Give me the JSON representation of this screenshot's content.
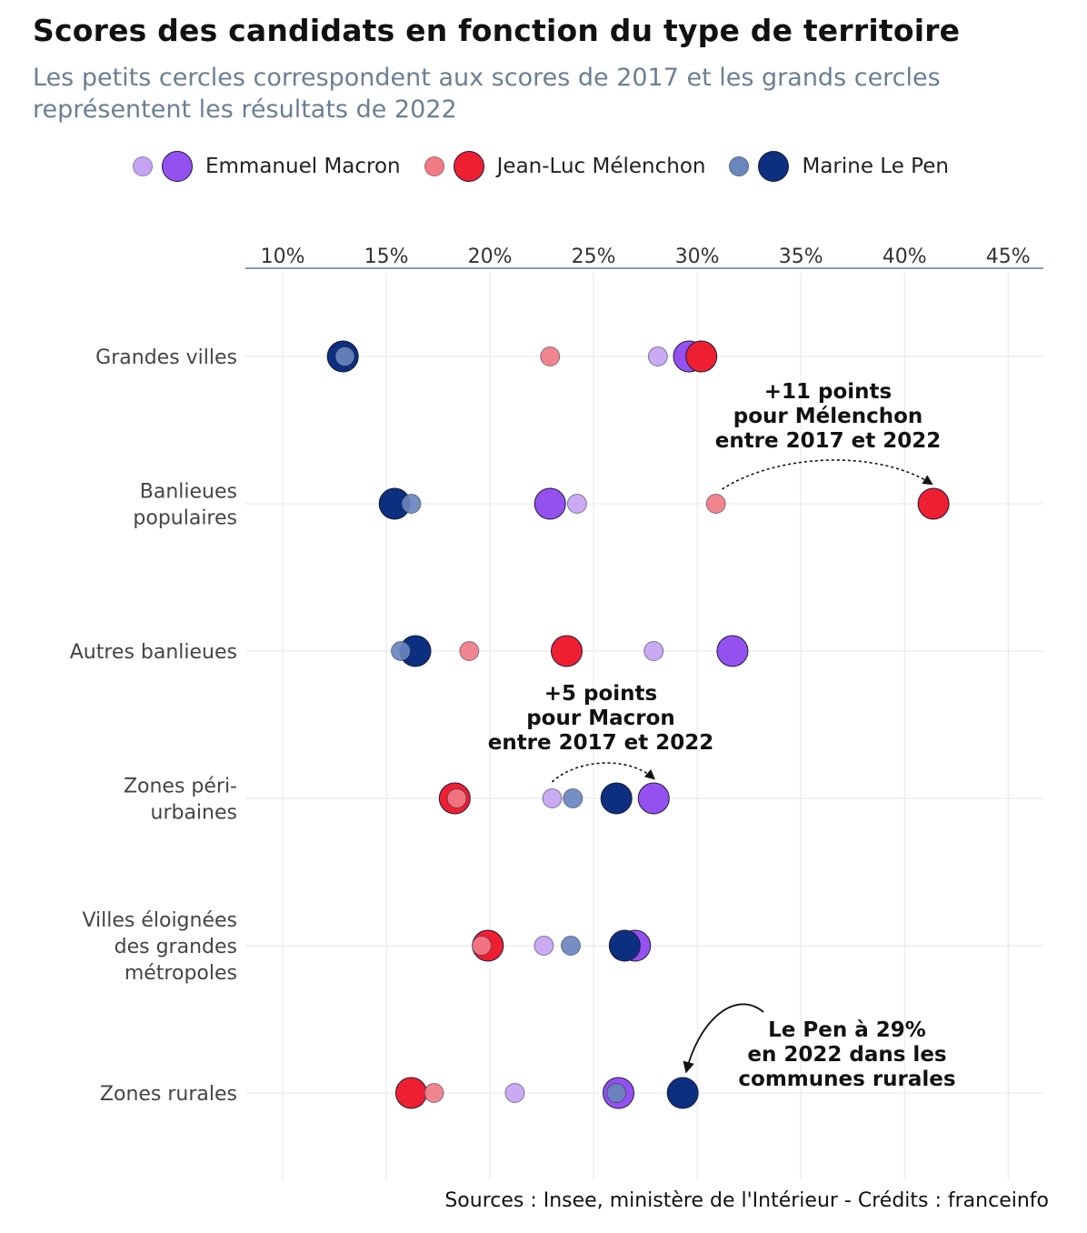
{
  "title": "Scores des candidats en fonction du type de territoire",
  "subtitle": "Les petits cercles correspondent aux scores de 2017 et les grands cercles représentent les résultats de 2022",
  "source": "Sources : Insee, ministère de l'Intérieur - Crédits : franceinfo",
  "chart_data": {
    "type": "scatter",
    "x_axis": {
      "ticks": [
        "10%",
        "15%",
        "20%",
        "25%",
        "30%",
        "35%",
        "40%",
        "45%"
      ],
      "tick_values": [
        10,
        15,
        20,
        25,
        30,
        35,
        40,
        45
      ],
      "range": [
        8.2,
        46.7
      ],
      "unit": "%",
      "position": "top"
    },
    "categories": [
      "Grandes villes",
      "Banlieues populaires",
      "Autres banlieues",
      "Zones péri-urbaines",
      "Villes éloignées des grandes métropoles",
      "Zones rurales"
    ],
    "category_labels": [
      [
        "Grandes villes"
      ],
      [
        "Banlieues",
        "populaires"
      ],
      [
        "Autres banlieues"
      ],
      [
        "Zones péri-",
        "urbaines"
      ],
      [
        "Villes éloignées",
        "des grandes",
        "métropoles"
      ],
      [
        "Zones rurales"
      ]
    ],
    "grid": true,
    "legend_position": "top",
    "series": [
      {
        "name": "Emmanuel Macron",
        "color_2017": "#c4a3f2",
        "color_2022": "#9451ef",
        "values_2017": [
          28.1,
          24.2,
          27.9,
          23.0,
          22.6,
          21.2
        ],
        "values_2022": [
          29.6,
          22.9,
          31.7,
          27.9,
          27.0,
          26.2
        ]
      },
      {
        "name": "Jean-Luc Mélenchon",
        "color_2017": "#f07b85",
        "color_2022": "#ee1f31",
        "values_2017": [
          22.9,
          30.9,
          19.0,
          18.4,
          19.6,
          17.3
        ],
        "values_2022": [
          30.2,
          41.4,
          23.7,
          18.3,
          19.9,
          16.2
        ]
      },
      {
        "name": "Marine Le Pen",
        "color_2017": "#6986bd",
        "color_2022": "#0c2f80",
        "values_2017": [
          13.0,
          16.2,
          15.7,
          24.0,
          23.9,
          26.1
        ],
        "values_2022": [
          12.9,
          15.4,
          16.4,
          26.1,
          26.5,
          29.3
        ]
      }
    ],
    "annotations": [
      {
        "lines": [
          "+11 points",
          "pour Mélenchon",
          "entre 2017 et 2022"
        ],
        "category": "Banlieues populaires",
        "from": 31.2,
        "to": 41.3
      },
      {
        "lines": [
          "+5 points",
          "pour Macron",
          "entre 2017 et 2022"
        ],
        "category": "Zones péri-urbaines",
        "from": 23.0,
        "to": 27.9
      },
      {
        "lines": [
          "Le Pen à 29%",
          "en 2022 dans les",
          "communes rurales"
        ],
        "category": "Zones rurales",
        "to": 29.3
      }
    ]
  }
}
